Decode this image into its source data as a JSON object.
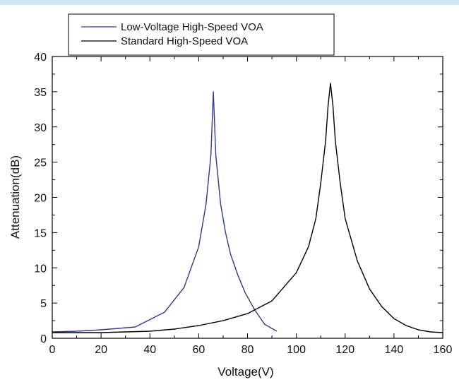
{
  "chart_data": {
    "type": "line",
    "title": "",
    "xlabel": "Voltage(V)",
    "ylabel": "Attenuation(dB)",
    "xlim": [
      0,
      160
    ],
    "ylim": [
      0,
      40
    ],
    "x_ticks": [
      "0",
      "20",
      "40",
      "60",
      "80",
      "100",
      "120",
      "140",
      "160"
    ],
    "y_ticks": [
      "0",
      "5",
      "10",
      "15",
      "20",
      "25",
      "30",
      "35",
      "40"
    ],
    "grid": false,
    "legend_position": "top-left, above plot",
    "series": [
      {
        "name": "Low-Voltage High-Speed VOA",
        "color": "#2e3a8c",
        "points": [
          [
            0,
            0.9
          ],
          [
            10,
            1.0
          ],
          [
            20,
            1.2
          ],
          [
            34,
            1.6
          ],
          [
            46,
            3.7
          ],
          [
            54,
            7.2
          ],
          [
            60,
            13
          ],
          [
            63,
            19
          ],
          [
            65,
            26
          ],
          [
            66,
            35
          ],
          [
            67,
            26
          ],
          [
            69,
            19
          ],
          [
            71,
            15
          ],
          [
            73,
            12
          ],
          [
            76,
            9
          ],
          [
            79,
            6.5
          ],
          [
            83,
            4
          ],
          [
            87,
            2
          ],
          [
            92,
            1.0
          ]
        ]
      },
      {
        "name": "Standard High-Speed VOA",
        "color": "#000000",
        "points": [
          [
            0,
            0.8
          ],
          [
            20,
            0.8
          ],
          [
            40,
            1.0
          ],
          [
            50,
            1.3
          ],
          [
            60,
            1.8
          ],
          [
            70,
            2.5
          ],
          [
            80,
            3.5
          ],
          [
            90,
            5.3
          ],
          [
            100,
            9.3
          ],
          [
            105,
            13
          ],
          [
            108,
            17
          ],
          [
            110,
            22
          ],
          [
            112,
            28
          ],
          [
            113,
            33
          ],
          [
            114,
            36.2
          ],
          [
            115,
            33
          ],
          [
            116,
            28
          ],
          [
            118,
            22
          ],
          [
            120,
            17
          ],
          [
            125,
            11
          ],
          [
            130,
            7
          ],
          [
            135,
            4.5
          ],
          [
            140,
            2.8
          ],
          [
            145,
            1.8
          ],
          [
            150,
            1.2
          ],
          [
            155,
            0.9
          ],
          [
            160,
            0.8
          ]
        ]
      }
    ]
  }
}
